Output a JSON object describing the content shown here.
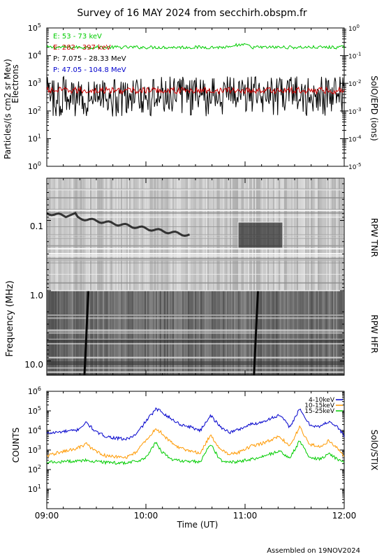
{
  "title": "Survey of 16 MAY 2024 from secchirh.obspm.fr",
  "footer": "Assembled on 19NOV2024",
  "x_axis": {
    "label": "Time (UT)",
    "ticks": [
      "09:00",
      "10:00",
      "11:00",
      "12:00"
    ],
    "range_hours": [
      9,
      12
    ]
  },
  "chart_data": [
    {
      "type": "line",
      "panel": "SolO/EPD",
      "ylabel_left_line1": "Particles/(s cm2 sr Mev)",
      "ylabel_left_line2": "Electrons",
      "ylabel_right": "SolO/EPD (ions)",
      "scale": "log",
      "ylim_left": [
        1,
        100000
      ],
      "ylim_right": [
        1e-05,
        1
      ],
      "left_ticks": [
        "10",
        "10",
        "10",
        "10",
        "10",
        "10"
      ],
      "left_exponents": [
        "0",
        "1",
        "2",
        "3",
        "4",
        "5"
      ],
      "right_ticks": [
        "10",
        "10",
        "10",
        "10",
        "10",
        "10"
      ],
      "right_exponents": [
        "-5",
        "-4",
        "-3",
        "-2",
        "-1",
        "0"
      ],
      "series": [
        {
          "name": "E: 53 - 73 keV",
          "color": "#00cc00",
          "axis": "left",
          "level": 20000,
          "noise": 0.06
        },
        {
          "name": "E: 282 - 397 keV",
          "color": "#cc0000",
          "axis": "left",
          "level": 550,
          "noise": 0.12
        },
        {
          "name": "P: 7.075 - 28.33 MeV",
          "color": "#000000",
          "axis": "right",
          "level": 0.005,
          "noise": 0.5
        },
        {
          "name": "P: 47.05 - 104.8 MeV",
          "color": "#0000cc",
          "axis": "right",
          "level": null,
          "noise": 0
        }
      ]
    },
    {
      "type": "heatmap",
      "panel": "RPW",
      "ylabel": "Frequency (MHz)",
      "scale": "log",
      "yrange_mhz": [
        0.025,
        16
      ],
      "ticks": [
        "0.1",
        "1.0",
        "10.0"
      ],
      "sub_labels": [
        "RPW TNR",
        "RPW HFR"
      ],
      "tnr_hfr_boundary_mhz": 1.0
    },
    {
      "type": "line",
      "panel": "SolO/STIX",
      "ylabel": "COUNTS",
      "ylabel_right": "SolO/STIX",
      "scale": "log",
      "ylim": [
        1,
        1000000
      ],
      "ticks": [
        "10",
        "10",
        "10",
        "10",
        "10",
        "10"
      ],
      "exponents": [
        "1",
        "2",
        "3",
        "4",
        "5",
        "6"
      ],
      "series": [
        {
          "name": "4-10keV",
          "color": "#0000cc",
          "x": [
            9.0,
            9.1,
            9.2,
            9.3,
            9.4,
            9.5,
            9.6,
            9.7,
            9.8,
            9.9,
            10.0,
            10.1,
            10.15,
            10.25,
            10.35,
            10.45,
            10.55,
            10.65,
            10.75,
            10.85,
            10.95,
            11.05,
            11.15,
            11.25,
            11.35,
            11.45,
            11.55,
            11.65,
            11.75,
            11.85,
            11.95,
            12.0
          ],
          "y": [
            7000,
            8000,
            9000,
            10000,
            25000,
            8000,
            5000,
            4000,
            3500,
            6000,
            30000,
            120000,
            100000,
            40000,
            20000,
            15000,
            10000,
            60000,
            15000,
            8000,
            12000,
            20000,
            25000,
            40000,
            60000,
            15000,
            120000,
            20000,
            15000,
            30000,
            12000,
            5000
          ]
        },
        {
          "name": "10-15keV",
          "color": "#ff9900",
          "x": [
            9.0,
            9.1,
            9.2,
            9.3,
            9.4,
            9.5,
            9.6,
            9.7,
            9.8,
            9.9,
            10.0,
            10.1,
            10.15,
            10.25,
            10.35,
            10.45,
            10.55,
            10.65,
            10.75,
            10.85,
            10.95,
            11.05,
            11.15,
            11.25,
            11.35,
            11.45,
            11.55,
            11.65,
            11.75,
            11.85,
            11.95,
            12.0
          ],
          "y": [
            500,
            700,
            900,
            1200,
            2000,
            800,
            500,
            450,
            400,
            800,
            3000,
            12000,
            8000,
            2500,
            1200,
            900,
            700,
            6000,
            1000,
            600,
            800,
            1500,
            2000,
            3000,
            5000,
            1500,
            15000,
            2000,
            1500,
            3000,
            1000,
            500
          ]
        },
        {
          "name": "15-25keV",
          "color": "#00cc00",
          "x": [
            9.0,
            9.1,
            9.2,
            9.3,
            9.4,
            9.5,
            9.6,
            9.7,
            9.8,
            9.9,
            10.0,
            10.1,
            10.15,
            10.25,
            10.35,
            10.45,
            10.55,
            10.65,
            10.75,
            10.85,
            10.95,
            11.05,
            11.15,
            11.25,
            11.35,
            11.45,
            11.55,
            11.65,
            11.75,
            11.85,
            11.95,
            12.0
          ],
          "y": [
            230,
            240,
            260,
            270,
            300,
            250,
            230,
            220,
            220,
            260,
            400,
            2500,
            900,
            350,
            280,
            260,
            250,
            2000,
            300,
            240,
            260,
            330,
            400,
            600,
            900,
            350,
            3000,
            400,
            350,
            600,
            300,
            230
          ]
        }
      ]
    }
  ]
}
